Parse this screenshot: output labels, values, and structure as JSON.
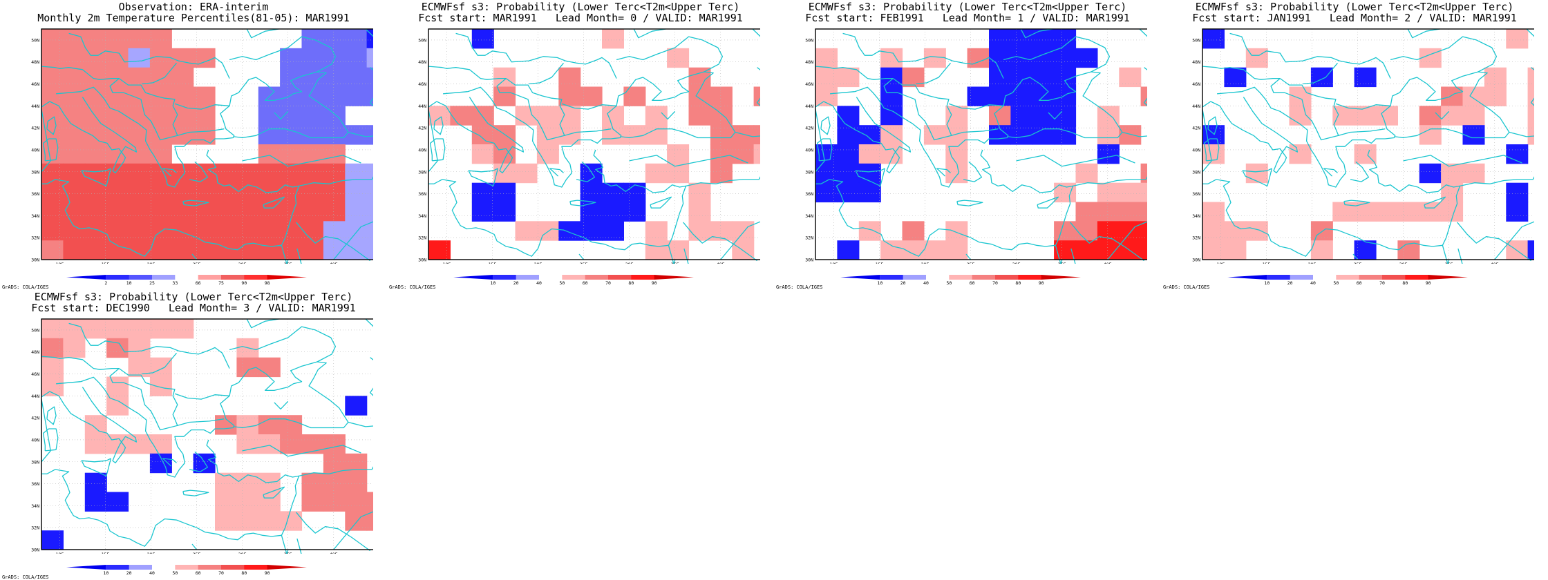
{
  "grads_credit": "GrADS: COLA/IGES",
  "panels": [
    {
      "title_line1": "Observation: ERA-interim",
      "title_line2": "Monthly 2m Temperature Percentiles(81-05): MAR1991",
      "colorbar_labels": [
        "2",
        "10",
        "25",
        "33",
        "66",
        "75",
        "90",
        "98"
      ],
      "colorbar_colors": [
        "#0000ee",
        "#2b2bff",
        "#5555ff",
        "#a0a0ff",
        "#ffffff",
        "#ffa0a0",
        "#f26060",
        "#ff3030",
        "#e00000"
      ],
      "cells": [
        "pppppp......bbbB",
        "ppppLppp...bbbbL",
        "ppppppp....bbbbb",
        "pppppppp..bbbbbb",
        "pppppppp..bbbb.",
        "pppppppp..bbbbbbLL",
        "pppppp....pppp...",
        "PPPPPPPPPPPPPPLL.",
        "PPPPPPPPPPPPPPLL.",
        "PPPPPPPPPPPPPPLL.",
        "PPPPPPPPPPPPPLLL.",
        "pPPPPPPPPPPPPLLL."
      ]
    },
    {
      "title_line1": "ECMWFsf s3: Probability (Lower Terc<T2m<Upper Terc)",
      "title_line2": "Fcst start: MAR1991   Lead Month= 0 / VALID: MAR1991",
      "colorbar_labels": [
        "10",
        "20",
        "40",
        "50",
        "60",
        "70",
        "80",
        "90"
      ],
      "colorbar_colors": [
        "#0000ee",
        "#2b2bff",
        "#a0a0ff",
        "#ffffff",
        "#ffb4b4",
        "#f58080",
        "#f25050",
        "#ff1a1a",
        "#d20000"
      ],
      "cells": []
    },
    {
      "title_line1": "ECMWFsf s3: Probability (Lower Terc<T2m<Upper Terc)",
      "title_line2": "Fcst start: FEB1991   Lead Month= 1 / VALID: MAR1991",
      "colorbar_labels": [
        "10",
        "20",
        "40",
        "50",
        "60",
        "70",
        "80",
        "90"
      ],
      "colorbar_colors": [
        "#0000ee",
        "#2b2bff",
        "#a0a0ff",
        "#ffffff",
        "#ffb4b4",
        "#f58080",
        "#f25050",
        "#ff1a1a",
        "#d20000"
      ],
      "cells": []
    },
    {
      "title_line1": "ECMWFsf s3: Probability (Lower Terc<T2m<Upper Terc)",
      "title_line2": "Fcst start: JAN1991   Lead Month= 2 / VALID: MAR1991",
      "colorbar_labels": [
        "10",
        "20",
        "40",
        "50",
        "60",
        "70",
        "80",
        "90"
      ],
      "colorbar_colors": [
        "#0000ee",
        "#2b2bff",
        "#a0a0ff",
        "#ffffff",
        "#ffb4b4",
        "#f58080",
        "#f25050",
        "#ff1a1a",
        "#d20000"
      ],
      "cells": []
    },
    {
      "title_line1": "ECMWFsf s3: Probability (Lower Terc<T2m<Upper Terc)",
      "title_line2": "Fcst start: DEC1990   Lead Month= 3 / VALID: MAR1991",
      "colorbar_labels": [
        "10",
        "20",
        "40",
        "50",
        "60",
        "70",
        "80",
        "90"
      ],
      "colorbar_colors": [
        "#0000ee",
        "#2b2bff",
        "#a0a0ff",
        "#ffffff",
        "#ffb4b4",
        "#f58080",
        "#f25050",
        "#ff1a1a",
        "#d20000"
      ],
      "cells": []
    }
  ],
  "lon_labels": [
    "10E",
    "15E",
    "20E",
    "25E",
    "30E",
    "35E",
    "40E",
    "45E"
  ],
  "lat_labels": [
    "30N",
    "32N",
    "34N",
    "36N",
    "38N",
    "40N",
    "42N",
    "44N",
    "46N",
    "48N",
    "50N"
  ],
  "map_colors": {
    "coast": "#19c5cf",
    "grid": "#b4b4b4",
    "frame": "#000000"
  }
}
